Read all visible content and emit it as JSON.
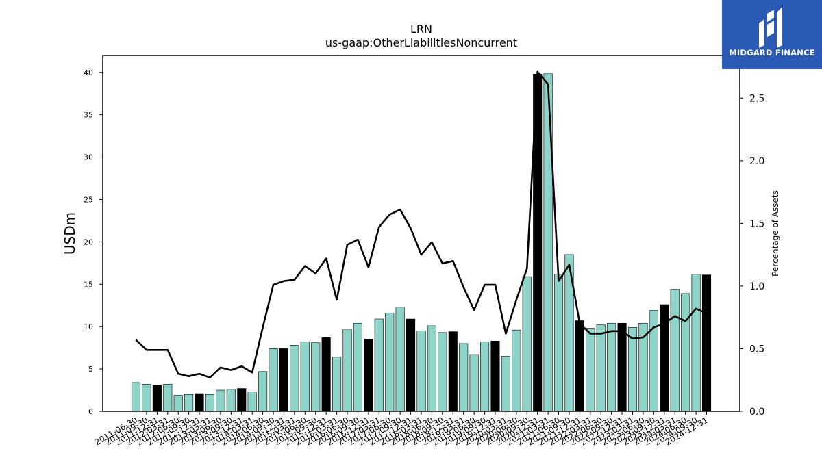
{
  "brand": {
    "name": "MIDGARD FINANCE",
    "bg_color": "#2a5ab3",
    "icon": "midgard-m-logo-icon"
  },
  "chart_data": {
    "type": "bar",
    "title": "LRN",
    "subtitle": "us-gaap:OtherLiabilitiesNoncurrent",
    "ylabel": "USDm",
    "y2label": "Percentage of Assets",
    "ylim": [
      0,
      42
    ],
    "y2lim": [
      0,
      2.84
    ],
    "yticks": [
      0,
      5,
      10,
      15,
      20,
      25,
      30,
      35,
      40
    ],
    "y2ticks": [
      0.0,
      0.5,
      1.0,
      1.5,
      2.0,
      2.5
    ],
    "colors": {
      "bar": "#8dd3c7",
      "bar_fiscal_year_end": "#000000",
      "line": "#000000"
    },
    "categories": [
      "2011-06-30",
      "2011-09-30",
      "2011-12-31",
      "2012-03-31",
      "2012-06-30",
      "2012-09-30",
      "2012-12-31",
      "2013-03-31",
      "2013-06-30",
      "2013-09-30",
      "2013-12-31",
      "2014-03-31",
      "2014-06-30",
      "2014-09-30",
      "2014-12-31",
      "2015-03-31",
      "2015-06-30",
      "2015-09-30",
      "2015-12-31",
      "2016-03-31",
      "2016-06-30",
      "2016-09-30",
      "2016-12-31",
      "2017-03-31",
      "2017-06-30",
      "2017-09-30",
      "2017-12-31",
      "2018-03-31",
      "2018-06-30",
      "2018-09-30",
      "2018-12-31",
      "2019-03-31",
      "2019-06-30",
      "2019-09-30",
      "2019-12-31",
      "2020-03-31",
      "2020-06-30",
      "2020-09-30",
      "2020-12-31",
      "2021-03-31",
      "2021-06-30",
      "2021-09-30",
      "2021-12-31",
      "2022-03-31",
      "2022-06-30",
      "2022-09-30",
      "2022-12-31",
      "2023-03-31",
      "2023-06-30",
      "2023-09-30",
      "2023-12-31",
      "2024-03-31",
      "2024-06-30",
      "2024-09-30",
      "2024-12-31"
    ],
    "series": [
      {
        "type": "bar",
        "axis": "left",
        "values": [
          3.4,
          3.2,
          3.1,
          3.2,
          1.9,
          2.0,
          2.1,
          2.0,
          2.5,
          2.6,
          2.7,
          2.3,
          4.7,
          7.4,
          7.4,
          7.8,
          8.2,
          8.1,
          8.7,
          6.4,
          9.7,
          10.4,
          8.5,
          10.9,
          11.6,
          12.3,
          10.9,
          9.5,
          10.1,
          9.3,
          9.4,
          8.0,
          6.7,
          8.2,
          8.3,
          6.5,
          9.6,
          15.9,
          39.8,
          39.9,
          16.2,
          18.5,
          10.7,
          9.8,
          10.2,
          10.4,
          10.4,
          9.9,
          10.4,
          11.9,
          12.6,
          14.4,
          13.9,
          16.2,
          16.1
        ]
      },
      {
        "type": "line",
        "axis": "right",
        "values": [
          0.57,
          0.49,
          0.49,
          0.49,
          0.3,
          0.28,
          0.3,
          0.27,
          0.35,
          0.33,
          0.36,
          0.31,
          0.67,
          1.01,
          1.04,
          1.05,
          1.16,
          1.1,
          1.22,
          0.89,
          1.33,
          1.37,
          1.15,
          1.47,
          1.57,
          1.61,
          1.46,
          1.25,
          1.35,
          1.18,
          1.2,
          0.99,
          0.81,
          1.01,
          1.01,
          0.62,
          0.89,
          1.14,
          2.71,
          2.61,
          1.04,
          1.17,
          0.7,
          0.62,
          0.62,
          0.64,
          0.64,
          0.58,
          0.59,
          0.67,
          0.7,
          0.76,
          0.72,
          0.82,
          0.78
        ]
      }
    ],
    "fiscal_year_end_indices": [
      2,
      6,
      10,
      14,
      18,
      22,
      26,
      30,
      34,
      38,
      42,
      46,
      50,
      54
    ],
    "grid": false,
    "legend": "none"
  }
}
